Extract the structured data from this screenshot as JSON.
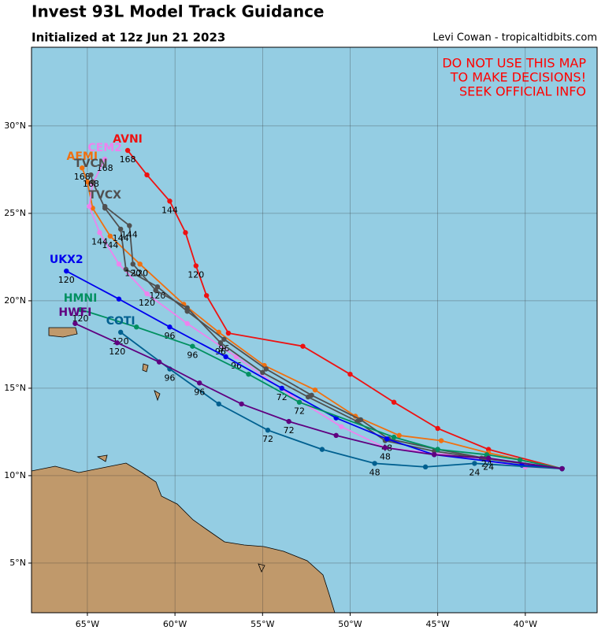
{
  "chart_data": {
    "type": "track_map",
    "title": "Invest 93L Model Track Guidance",
    "subtitle": "Initialized at 12z Jun 21 2023",
    "credit": "Levi Cowan - tropicaltidbits.com",
    "warning": [
      "DO NOT USE THIS MAP",
      "TO MAKE DECISIONS!",
      "SEEK OFFICIAL INFO"
    ],
    "xlim": [
      -68.19,
      -35.9
    ],
    "ylim": [
      2.16,
      34.5
    ],
    "xticks": [
      {
        "value": -65,
        "label": "65°W"
      },
      {
        "value": -60,
        "label": "60°W"
      },
      {
        "value": -55,
        "label": "55°W"
      },
      {
        "value": -50,
        "label": "50°W"
      },
      {
        "value": -45,
        "label": "45°W"
      },
      {
        "value": -40,
        "label": "40°W"
      }
    ],
    "yticks": [
      {
        "value": 5,
        "label": "5°N"
      },
      {
        "value": 10,
        "label": "10°N"
      },
      {
        "value": 15,
        "label": "15°N"
      },
      {
        "value": 20,
        "label": "20°N"
      },
      {
        "value": 25,
        "label": "25°N"
      },
      {
        "value": 30,
        "label": "30°N"
      }
    ],
    "grid": true,
    "series": [
      {
        "name": "AVNI",
        "color": "#ee1111",
        "lon": [
          -37.9,
          -42.1,
          -45.0,
          -47.5,
          -50.0,
          -52.7,
          -56.95,
          -58.2,
          -58.8,
          -59.4,
          -60.3,
          -61.6,
          -62.7
        ],
        "lat": [
          10.4,
          11.5,
          12.7,
          14.2,
          15.8,
          17.4,
          18.15,
          20.3,
          22.0,
          23.9,
          25.7,
          27.2,
          28.6
        ],
        "hours": [
          null,
          null,
          null,
          null,
          null,
          null,
          null,
          null,
          120,
          null,
          144,
          null,
          168
        ]
      },
      {
        "name": "AEMI",
        "color": "#f07010",
        "lon": [
          -37.9,
          -42.1,
          -44.8,
          -47.2,
          -49.7,
          -52.0,
          -54.9,
          -57.5,
          -59.5,
          -62.0,
          -63.7,
          -64.7,
          -65.0,
          -65.3
        ],
        "lat": [
          10.4,
          11.3,
          12.0,
          12.3,
          13.4,
          14.9,
          16.3,
          18.2,
          19.8,
          22.1,
          23.7,
          25.3,
          26.8,
          27.6
        ],
        "hours": [
          null,
          null,
          null,
          null,
          null,
          null,
          null,
          null,
          null,
          120,
          144,
          null,
          null,
          168
        ]
      },
      {
        "name": "CEM2",
        "color": "#ee82ee",
        "lon": [
          -37.9,
          -40.0,
          -44.5,
          -48.0,
          -50.5,
          -53.4,
          -56.5,
          -59.3,
          -61.6,
          -63.2,
          -64.3,
          -64.9,
          -64.7,
          -64.0
        ],
        "lat": [
          10.4,
          10.5,
          11.2,
          11.6,
          12.8,
          14.6,
          16.8,
          18.7,
          20.4,
          22.1,
          23.9,
          25.4,
          26.7,
          28.1
        ],
        "hours": [
          null,
          null,
          null,
          null,
          null,
          null,
          96,
          null,
          120,
          null,
          144,
          null,
          null,
          168
        ]
      },
      {
        "name": "TVCN",
        "color": "#505050",
        "lon": [
          -37.9,
          -42.3,
          -45.0,
          -47.8,
          -49.4,
          -52.2,
          -54.8,
          -57.2,
          -59.3,
          -61.0,
          -62.8,
          -63.1,
          -64.0,
          -64.7,
          -64.8
        ],
        "lat": [
          10.4,
          11.0,
          11.5,
          12.1,
          13.2,
          14.6,
          16.1,
          17.8,
          19.4,
          20.8,
          21.8,
          24.1,
          25.3,
          26.8,
          27.2
        ],
        "hours": [
          null,
          null,
          null,
          null,
          null,
          null,
          null,
          96,
          null,
          120,
          null,
          144,
          null,
          null,
          168
        ]
      },
      {
        "name": "TVCX",
        "color": "#505050",
        "lon": [
          -37.9,
          -42.5,
          -45.2,
          -48.0,
          -49.6,
          -52.4,
          -55.0,
          -57.4,
          -59.3,
          -61.1,
          -62.4,
          -62.6,
          -64.0
        ],
        "lat": [
          10.4,
          11.0,
          11.4,
          12.0,
          13.1,
          14.5,
          15.9,
          17.6,
          19.6,
          20.6,
          22.1,
          24.3,
          25.4
        ],
        "hours": [
          null,
          null,
          null,
          null,
          null,
          null,
          null,
          96,
          null,
          null,
          120,
          144,
          null
        ]
      },
      {
        "name": "UKX2",
        "color": "#0000ee",
        "lon": [
          -37.9,
          -40.2,
          -45.2,
          -47.9,
          -50.8,
          -53.9,
          -57.1,
          -60.3,
          -63.2,
          -66.2
        ],
        "lat": [
          10.4,
          10.6,
          11.2,
          12.1,
          13.3,
          15.0,
          16.8,
          18.5,
          20.1,
          21.7
        ],
        "hours": [
          null,
          null,
          null,
          48,
          null,
          72,
          null,
          96,
          null,
          120
        ]
      },
      {
        "name": "HMNI",
        "color": "#009060",
        "lon": [
          -37.9,
          -40.3,
          -42.2,
          -45.0,
          -47.5,
          -52.9,
          -55.8,
          -59.0,
          -62.2,
          -65.4
        ],
        "lat": [
          10.4,
          10.9,
          11.2,
          11.5,
          12.2,
          14.2,
          15.8,
          17.4,
          18.5,
          19.5
        ],
        "hours": [
          null,
          null,
          24,
          null,
          null,
          72,
          null,
          96,
          null,
          120
        ]
      },
      {
        "name": "COTI",
        "color": "#006090",
        "lon": [
          -37.9,
          -42.9,
          -45.7,
          -48.6,
          -51.6,
          -54.7,
          -57.5,
          -60.3,
          -63.1
        ],
        "lat": [
          10.4,
          10.7,
          10.5,
          10.7,
          11.5,
          12.6,
          14.1,
          16.1,
          18.2
        ],
        "hours": [
          null,
          24,
          null,
          48,
          null,
          72,
          null,
          96,
          120
        ]
      },
      {
        "name": "HWFI",
        "color": "#600080",
        "lon": [
          -37.9,
          -42.1,
          -45.2,
          -48.0,
          -50.8,
          -53.5,
          -56.2,
          -58.6,
          -60.9,
          -63.3,
          -65.7
        ],
        "lat": [
          10.4,
          11.0,
          11.2,
          11.6,
          12.3,
          13.1,
          14.1,
          15.3,
          16.5,
          17.6,
          18.7
        ],
        "hours": [
          null,
          24,
          null,
          48,
          null,
          72,
          null,
          96,
          null,
          120,
          null
        ]
      }
    ]
  }
}
